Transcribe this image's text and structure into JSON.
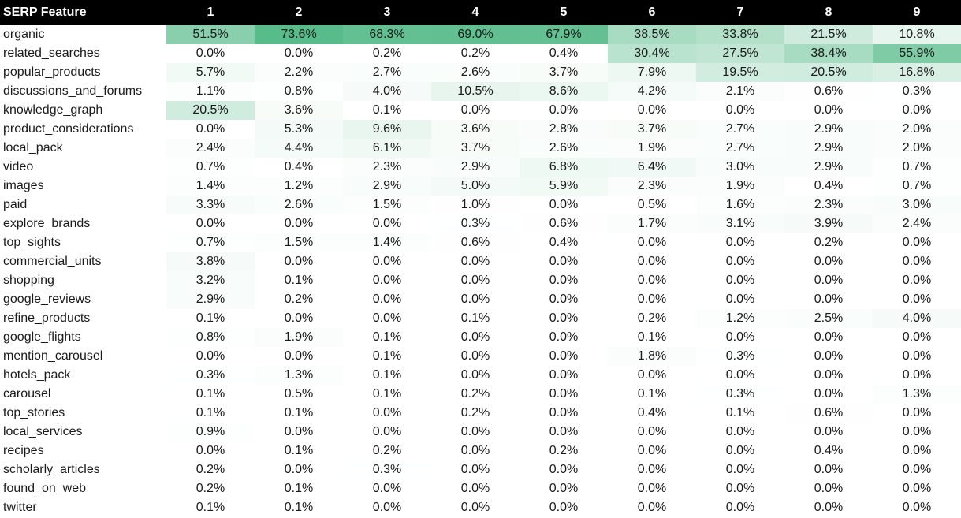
{
  "table": {
    "header_label": "SERP Feature",
    "columns": [
      "1",
      "2",
      "3",
      "4",
      "5",
      "6",
      "7",
      "8",
      "9"
    ],
    "accent_color": "#57bb8a",
    "rows": [
      {
        "feature": "organic",
        "values": [
          "51.5%",
          "73.6%",
          "68.3%",
          "69.0%",
          "67.9%",
          "38.5%",
          "33.8%",
          "21.5%",
          "10.8%"
        ]
      },
      {
        "feature": "related_searches",
        "values": [
          "0.0%",
          "0.0%",
          "0.2%",
          "0.2%",
          "0.4%",
          "30.4%",
          "27.5%",
          "38.4%",
          "55.9%"
        ]
      },
      {
        "feature": "popular_products",
        "values": [
          "5.7%",
          "2.2%",
          "2.7%",
          "2.6%",
          "3.7%",
          "7.9%",
          "19.5%",
          "20.5%",
          "16.8%"
        ]
      },
      {
        "feature": "discussions_and_forums",
        "values": [
          "1.1%",
          "0.8%",
          "4.0%",
          "10.5%",
          "8.6%",
          "4.2%",
          "2.1%",
          "0.6%",
          "0.3%"
        ]
      },
      {
        "feature": "knowledge_graph",
        "values": [
          "20.5%",
          "3.6%",
          "0.1%",
          "0.0%",
          "0.0%",
          "0.0%",
          "0.0%",
          "0.0%",
          "0.0%"
        ]
      },
      {
        "feature": "product_considerations",
        "values": [
          "0.0%",
          "5.3%",
          "9.6%",
          "3.6%",
          "2.8%",
          "3.7%",
          "2.7%",
          "2.9%",
          "2.0%"
        ]
      },
      {
        "feature": "local_pack",
        "values": [
          "2.4%",
          "4.4%",
          "6.1%",
          "3.7%",
          "2.6%",
          "1.9%",
          "2.7%",
          "2.9%",
          "2.0%"
        ]
      },
      {
        "feature": "video",
        "values": [
          "0.7%",
          "0.4%",
          "2.3%",
          "2.9%",
          "6.8%",
          "6.4%",
          "3.0%",
          "2.9%",
          "0.7%"
        ]
      },
      {
        "feature": "images",
        "values": [
          "1.4%",
          "1.2%",
          "2.9%",
          "5.0%",
          "5.9%",
          "2.3%",
          "1.9%",
          "0.4%",
          "0.7%"
        ]
      },
      {
        "feature": "paid",
        "values": [
          "3.3%",
          "2.6%",
          "1.5%",
          "1.0%",
          "0.0%",
          "0.5%",
          "1.6%",
          "2.3%",
          "3.0%"
        ]
      },
      {
        "feature": "explore_brands",
        "values": [
          "0.0%",
          "0.0%",
          "0.0%",
          "0.3%",
          "0.6%",
          "1.7%",
          "3.1%",
          "3.9%",
          "2.4%"
        ]
      },
      {
        "feature": "top_sights",
        "values": [
          "0.7%",
          "1.5%",
          "1.4%",
          "0.6%",
          "0.4%",
          "0.0%",
          "0.0%",
          "0.2%",
          "0.0%"
        ]
      },
      {
        "feature": "commercial_units",
        "values": [
          "3.8%",
          "0.0%",
          "0.0%",
          "0.0%",
          "0.0%",
          "0.0%",
          "0.0%",
          "0.0%",
          "0.0%"
        ]
      },
      {
        "feature": "shopping",
        "values": [
          "3.2%",
          "0.1%",
          "0.0%",
          "0.0%",
          "0.0%",
          "0.0%",
          "0.0%",
          "0.0%",
          "0.0%"
        ]
      },
      {
        "feature": "google_reviews",
        "values": [
          "2.9%",
          "0.2%",
          "0.0%",
          "0.0%",
          "0.0%",
          "0.0%",
          "0.0%",
          "0.0%",
          "0.0%"
        ]
      },
      {
        "feature": "refine_products",
        "values": [
          "0.1%",
          "0.0%",
          "0.0%",
          "0.1%",
          "0.0%",
          "0.2%",
          "1.2%",
          "2.5%",
          "4.0%"
        ]
      },
      {
        "feature": "google_flights",
        "values": [
          "0.8%",
          "1.9%",
          "0.1%",
          "0.0%",
          "0.0%",
          "0.1%",
          "0.0%",
          "0.0%",
          "0.0%"
        ]
      },
      {
        "feature": "mention_carousel",
        "values": [
          "0.0%",
          "0.0%",
          "0.1%",
          "0.0%",
          "0.0%",
          "1.8%",
          "0.3%",
          "0.0%",
          "0.0%"
        ]
      },
      {
        "feature": "hotels_pack",
        "values": [
          "0.3%",
          "1.3%",
          "0.1%",
          "0.0%",
          "0.0%",
          "0.0%",
          "0.0%",
          "0.0%",
          "0.0%"
        ]
      },
      {
        "feature": "carousel",
        "values": [
          "0.1%",
          "0.5%",
          "0.1%",
          "0.2%",
          "0.0%",
          "0.1%",
          "0.3%",
          "0.0%",
          "1.3%"
        ]
      },
      {
        "feature": "top_stories",
        "values": [
          "0.1%",
          "0.1%",
          "0.0%",
          "0.2%",
          "0.0%",
          "0.4%",
          "0.1%",
          "0.6%",
          "0.0%"
        ]
      },
      {
        "feature": "local_services",
        "values": [
          "0.9%",
          "0.0%",
          "0.0%",
          "0.0%",
          "0.0%",
          "0.0%",
          "0.0%",
          "0.0%",
          "0.0%"
        ]
      },
      {
        "feature": "recipes",
        "values": [
          "0.0%",
          "0.1%",
          "0.2%",
          "0.0%",
          "0.2%",
          "0.0%",
          "0.0%",
          "0.4%",
          "0.0%"
        ]
      },
      {
        "feature": "scholarly_articles",
        "values": [
          "0.2%",
          "0.0%",
          "0.3%",
          "0.0%",
          "0.0%",
          "0.0%",
          "0.0%",
          "0.0%",
          "0.0%"
        ]
      },
      {
        "feature": "found_on_web",
        "values": [
          "0.2%",
          "0.1%",
          "0.0%",
          "0.0%",
          "0.0%",
          "0.0%",
          "0.0%",
          "0.0%",
          "0.0%"
        ]
      },
      {
        "feature": "twitter",
        "values": [
          "0.1%",
          "0.1%",
          "0.0%",
          "0.0%",
          "0.0%",
          "0.0%",
          "0.0%",
          "0.0%",
          "0.0%"
        ]
      }
    ]
  }
}
